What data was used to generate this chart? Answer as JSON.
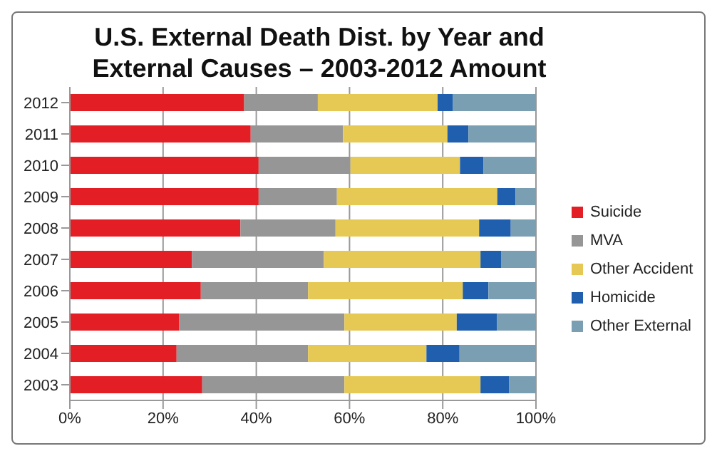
{
  "chart_data": {
    "type": "bar",
    "orientation": "horizontal",
    "stacked": true,
    "title": "U.S. External Death Dist. by Year and External Causes – 2003-2012 Amount",
    "categories": [
      "2012",
      "2011",
      "2010",
      "2009",
      "2008",
      "2007",
      "2006",
      "2005",
      "2004",
      "2003"
    ],
    "series": [
      {
        "name": "Suicide",
        "color": "#e31e24",
        "values": [
          37.4,
          38.8,
          40.5,
          40.5,
          36.6,
          26.2,
          28.1,
          23.4,
          22.9,
          28.4
        ]
      },
      {
        "name": "MVA",
        "color": "#969696",
        "values": [
          15.8,
          19.8,
          19.7,
          16.8,
          20.4,
          28.3,
          23.0,
          35.5,
          28.2,
          30.5
        ]
      },
      {
        "name": "Other Accident",
        "color": "#e6c955",
        "values": [
          25.7,
          22.4,
          23.5,
          34.4,
          30.8,
          33.6,
          33.2,
          24.1,
          25.4,
          29.2
        ]
      },
      {
        "name": "Homicide",
        "color": "#1f5fad",
        "values": [
          3.3,
          4.5,
          5.0,
          3.9,
          6.8,
          4.5,
          5.5,
          8.6,
          7.1,
          6.1
        ]
      },
      {
        "name": "Other External",
        "color": "#7a9fb3",
        "values": [
          17.8,
          14.5,
          11.3,
          4.4,
          5.4,
          7.4,
          10.2,
          8.4,
          16.4,
          5.8
        ]
      }
    ],
    "xlim": [
      0,
      100
    ],
    "xticks": [
      {
        "value": 0,
        "label": "0%"
      },
      {
        "value": 20,
        "label": "20%"
      },
      {
        "value": 40,
        "label": "40%"
      },
      {
        "value": 60,
        "label": "60%"
      },
      {
        "value": 80,
        "label": "80%"
      },
      {
        "value": 100,
        "label": "100%"
      }
    ],
    "grid": "x",
    "legend": "right"
  }
}
